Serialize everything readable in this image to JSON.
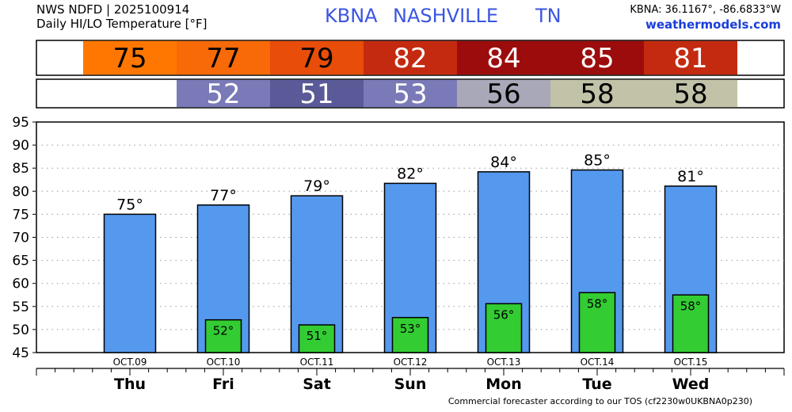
{
  "header": {
    "product": "NWS NDFD | 2025100914",
    "subtitle": "Daily HI/LO Temperature [°F]",
    "station": "KBNA",
    "city": "NASHVILLE",
    "state": "TN",
    "coords": "KBNA: 36.1167°, -86.6833°W",
    "site": "weathermodels.com"
  },
  "footer": "Commercial forecaster according to our TOS (cf2230w0UKBNA0p230)",
  "colors": {
    "high_bar": "#5599ee",
    "low_bar": "#33cc33",
    "high_strip": [
      "#ff7700",
      "#f76a07",
      "#e84d0a",
      "#c42a10",
      "#9c0c0c",
      "#9c0c0c",
      "#c42a10"
    ],
    "low_strip": [
      null,
      "#7a7ab8",
      "#5a5a98",
      "#7a7ab8",
      "#a8a8b8",
      "#c2c2a8",
      "#c2c2a8"
    ],
    "high_strip_text": [
      "#000000",
      "#000000",
      "#000000",
      "#ffffff",
      "#ffffff",
      "#ffffff",
      "#ffffff"
    ],
    "low_strip_text": [
      "#000000",
      "#ffffff",
      "#ffffff",
      "#ffffff",
      "#000000",
      "#000000",
      "#000000"
    ]
  },
  "chart_data": {
    "type": "bar",
    "categories": [
      "Thu",
      "Fri",
      "Sat",
      "Sun",
      "Mon",
      "Tue",
      "Wed"
    ],
    "dates": [
      "OCT.09",
      "OCT.10",
      "OCT.11",
      "OCT.12",
      "OCT.13",
      "OCT.14",
      "OCT.15"
    ],
    "series": [
      {
        "values": [
          75,
          77,
          79,
          82,
          84,
          85,
          81
        ],
        "labels": [
          "75°",
          "77°",
          "79°",
          "82°",
          "84°",
          "85°",
          "81°"
        ],
        "plot_values": [
          75,
          77,
          79,
          81.7,
          84.2,
          84.6,
          81.1
        ]
      },
      {
        "values": [
          null,
          52,
          51,
          53,
          56,
          58,
          58
        ],
        "labels": [
          null,
          "52°",
          "51°",
          "53°",
          "56°",
          "58°",
          "58°"
        ],
        "plot_values": [
          null,
          52.1,
          51,
          52.6,
          55.6,
          58,
          57.5
        ]
      }
    ],
    "ylim": [
      45,
      95
    ],
    "yticks": [
      95,
      90,
      85,
      80,
      75,
      70,
      65,
      60,
      55,
      50,
      45
    ],
    "grid": true
  }
}
